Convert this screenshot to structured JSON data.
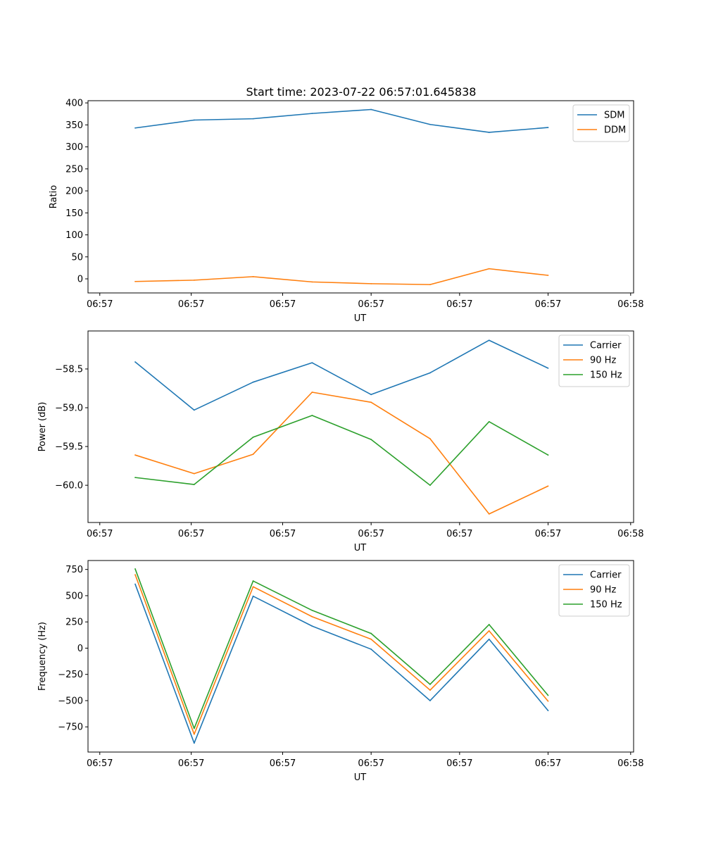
{
  "title": "Start time: 2023-07-22 06:57:01.645838",
  "colors": {
    "blue": "#1f77b4",
    "orange": "#ff7f0e",
    "green": "#2ca02c"
  },
  "chart_data": [
    {
      "type": "line",
      "xlabel": "UT",
      "ylabel": "Ratio",
      "x_tick_labels": [
        "06:57",
        "06:57",
        "06:57",
        "06:57",
        "06:57",
        "06:57",
        "06:58"
      ],
      "x": [
        1,
        2,
        3,
        4,
        5,
        6,
        7,
        8
      ],
      "xlim": [
        0.2,
        9.45
      ],
      "ylim": [
        -32,
        405
      ],
      "yticks": [
        0,
        50,
        100,
        150,
        200,
        250,
        300,
        350,
        400
      ],
      "ytick_labels": [
        "0",
        "50",
        "100",
        "150",
        "200",
        "250",
        "300",
        "350",
        "400"
      ],
      "legend_position": "top-right",
      "series": [
        {
          "name": "SDM",
          "color": "blue",
          "values": [
            343,
            361,
            364,
            376,
            385,
            351,
            333,
            344
          ]
        },
        {
          "name": "DDM",
          "color": "orange",
          "values": [
            -6,
            -3,
            5,
            -7,
            -11,
            -13,
            23,
            8
          ]
        }
      ]
    },
    {
      "type": "line",
      "xlabel": "UT",
      "ylabel": "Power (dB)",
      "x_tick_labels": [
        "06:57",
        "06:57",
        "06:57",
        "06:57",
        "06:57",
        "06:57",
        "06:58"
      ],
      "x": [
        1,
        2,
        3,
        4,
        5,
        6,
        7,
        8
      ],
      "xlim": [
        0.2,
        9.45
      ],
      "ylim": [
        -60.48,
        -58.01
      ],
      "yticks": [
        -60.0,
        -59.5,
        -59.0,
        -58.5
      ],
      "ytick_labels": [
        "−60.0",
        "−59.5",
        "−59.0",
        "−58.5"
      ],
      "legend_position": "top-right",
      "series": [
        {
          "name": "Carrier",
          "color": "blue",
          "values": [
            -58.41,
            -59.03,
            -58.67,
            -58.42,
            -58.83,
            -58.55,
            -58.13,
            -58.49
          ]
        },
        {
          "name": "90 Hz",
          "color": "orange",
          "values": [
            -59.61,
            -59.85,
            -59.6,
            -58.8,
            -58.93,
            -59.4,
            -60.37,
            -60.01
          ]
        },
        {
          "name": "150 Hz",
          "color": "green",
          "values": [
            -59.9,
            -59.99,
            -59.38,
            -59.1,
            -59.41,
            -60.0,
            -59.18,
            -59.61
          ]
        }
      ]
    },
    {
      "type": "line",
      "xlabel": "UT",
      "ylabel": "Frequency (Hz)",
      "x_tick_labels": [
        "06:57",
        "06:57",
        "06:57",
        "06:57",
        "06:57",
        "06:57",
        "06:58"
      ],
      "x": [
        1,
        2,
        3,
        4,
        5,
        6,
        7,
        8
      ],
      "xlim": [
        0.2,
        9.45
      ],
      "ylim": [
        -990,
        835
      ],
      "yticks": [
        -750,
        -500,
        -250,
        0,
        250,
        500,
        750
      ],
      "ytick_labels": [
        "−750",
        "−500",
        "−250",
        "0",
        "250",
        "500",
        "750"
      ],
      "legend_position": "top-right",
      "series": [
        {
          "name": "Carrier",
          "color": "blue",
          "values": [
            610,
            -905,
            495,
            210,
            -10,
            -500,
            85,
            -595
          ]
        },
        {
          "name": "90 Hz",
          "color": "orange",
          "values": [
            700,
            -820,
            585,
            300,
            85,
            -400,
            165,
            -505
          ]
        },
        {
          "name": "150 Hz",
          "color": "green",
          "values": [
            755,
            -765,
            640,
            360,
            140,
            -345,
            225,
            -450
          ]
        }
      ]
    }
  ]
}
